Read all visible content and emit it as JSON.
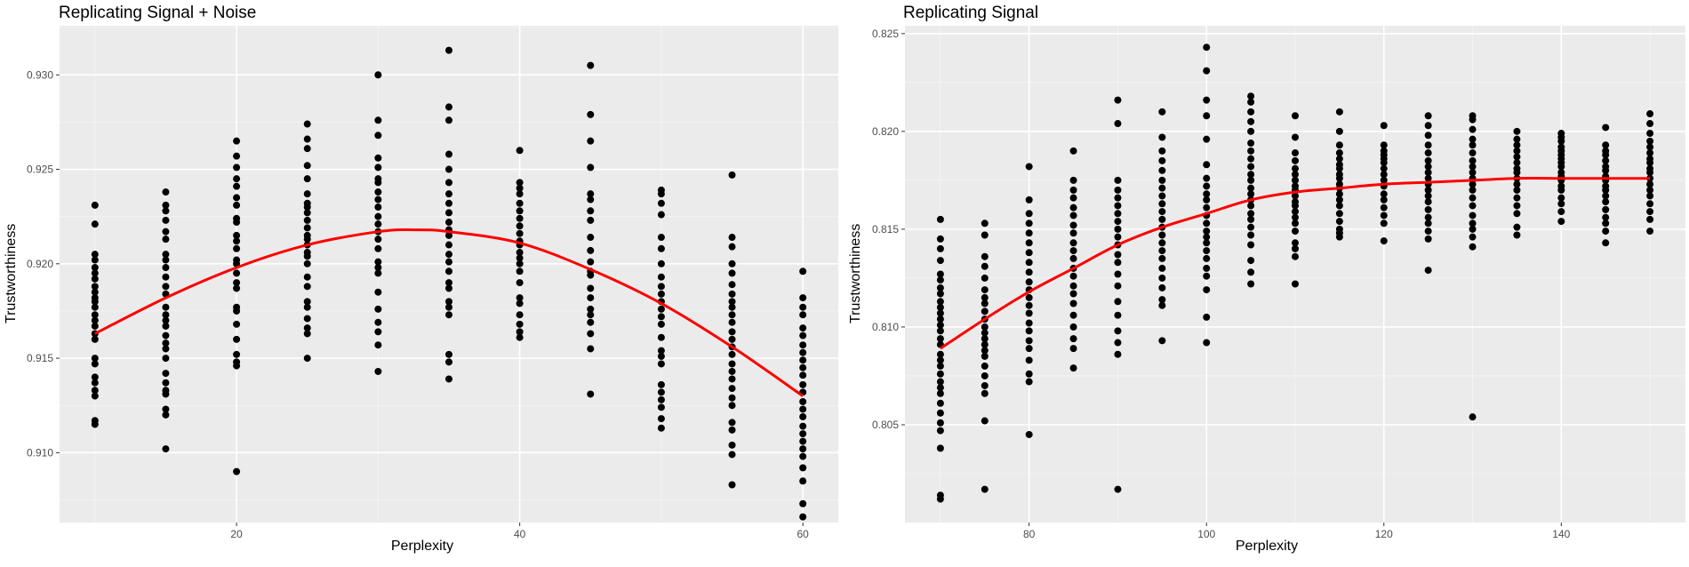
{
  "chart_data": [
    {
      "type": "scatter",
      "title": "Replicating Signal + Noise",
      "xlabel": "Perplexity",
      "ylabel": "Trustworthiness",
      "xlim": [
        7.5,
        62.5
      ],
      "ylim": [
        0.9063,
        0.9326
      ],
      "xticks": [
        20,
        40,
        60
      ],
      "yticks": [
        0.91,
        0.915,
        0.92,
        0.925,
        0.93
      ],
      "ytick_labels": [
        "0.910",
        "0.915",
        "0.920",
        "0.925",
        "0.930"
      ],
      "grid": true,
      "point_color": "#000000",
      "line_color": "#ff0000",
      "points": {
        "10": [
          0.9231,
          0.9221,
          0.9205,
          0.9202,
          0.9198,
          0.9195,
          0.9192,
          0.9188,
          0.9185,
          0.9182,
          0.918,
          0.9177,
          0.9173,
          0.917,
          0.9167,
          0.9163,
          0.916,
          0.915,
          0.9147,
          0.914,
          0.9137,
          0.9133,
          0.913,
          0.9117,
          0.9115
        ],
        "15": [
          0.9238,
          0.9231,
          0.9228,
          0.9223,
          0.9217,
          0.9213,
          0.9205,
          0.9202,
          0.9198,
          0.9193,
          0.9188,
          0.9184,
          0.9177,
          0.9173,
          0.917,
          0.9167,
          0.9162,
          0.9158,
          0.9155,
          0.915,
          0.9142,
          0.9137,
          0.9133,
          0.9131,
          0.9123,
          0.912,
          0.9102
        ],
        "20": [
          0.9265,
          0.9257,
          0.9251,
          0.9245,
          0.9241,
          0.9235,
          0.9231,
          0.9224,
          0.9222,
          0.9215,
          0.9212,
          0.9208,
          0.9202,
          0.92,
          0.9195,
          0.919,
          0.9187,
          0.9177,
          0.9175,
          0.9168,
          0.916,
          0.9152,
          0.9148,
          0.9146,
          0.909
        ],
        "25": [
          0.9274,
          0.9266,
          0.9261,
          0.9252,
          0.9245,
          0.9237,
          0.9232,
          0.923,
          0.9227,
          0.9223,
          0.9219,
          0.9215,
          0.9213,
          0.921,
          0.9206,
          0.9204,
          0.92,
          0.9193,
          0.9188,
          0.918,
          0.9177,
          0.9171,
          0.9166,
          0.9163,
          0.915
        ],
        "30": [
          0.93,
          0.9276,
          0.9268,
          0.9256,
          0.9251,
          0.9245,
          0.9243,
          0.9238,
          0.9234,
          0.923,
          0.9225,
          0.9221,
          0.9217,
          0.9213,
          0.9208,
          0.9201,
          0.9198,
          0.9195,
          0.9185,
          0.9176,
          0.9169,
          0.9164,
          0.9157,
          0.9143
        ],
        "35": [
          0.9313,
          0.9283,
          0.9276,
          0.9258,
          0.925,
          0.9243,
          0.9237,
          0.9232,
          0.9227,
          0.9222,
          0.9218,
          0.9215,
          0.921,
          0.9205,
          0.9201,
          0.9196,
          0.919,
          0.9187,
          0.918,
          0.9177,
          0.9173,
          0.9152,
          0.9148,
          0.9139
        ],
        "40": [
          0.926,
          0.9243,
          0.924,
          0.9237,
          0.9232,
          0.9228,
          0.9224,
          0.922,
          0.9216,
          0.9212,
          0.921,
          0.9206,
          0.9203,
          0.92,
          0.9196,
          0.919,
          0.9182,
          0.9179,
          0.9173,
          0.9168,
          0.9164,
          0.9161
        ],
        "45": [
          0.9305,
          0.9279,
          0.9265,
          0.9251,
          0.9237,
          0.9234,
          0.9228,
          0.9223,
          0.9214,
          0.9207,
          0.9201,
          0.9196,
          0.9194,
          0.9187,
          0.9182,
          0.9176,
          0.9173,
          0.9169,
          0.9163,
          0.9155,
          0.9131
        ],
        "50": [
          0.9239,
          0.9237,
          0.9232,
          0.9226,
          0.9214,
          0.9208,
          0.92,
          0.9193,
          0.9188,
          0.9184,
          0.918,
          0.9176,
          0.9172,
          0.9168,
          0.9161,
          0.9154,
          0.9151,
          0.9147,
          0.9136,
          0.9132,
          0.9128,
          0.9124,
          0.9118,
          0.9113
        ],
        "55": [
          0.9247,
          0.9214,
          0.9209,
          0.92,
          0.9195,
          0.9189,
          0.9184,
          0.918,
          0.9177,
          0.9173,
          0.9169,
          0.9164,
          0.916,
          0.9156,
          0.9152,
          0.9147,
          0.9143,
          0.9139,
          0.9134,
          0.9129,
          0.9125,
          0.9116,
          0.9112,
          0.9104,
          0.9099,
          0.9083
        ],
        "60": [
          0.9196,
          0.9182,
          0.9177,
          0.9173,
          0.9166,
          0.9162,
          0.9157,
          0.9153,
          0.9149,
          0.9145,
          0.9141,
          0.9136,
          0.9132,
          0.9127,
          0.9123,
          0.9119,
          0.9114,
          0.911,
          0.9106,
          0.9102,
          0.9098,
          0.9092,
          0.9085,
          0.9073,
          0.9066
        ]
      },
      "trend": {
        "x": [
          10,
          15,
          20,
          25,
          30,
          32.5,
          35,
          40,
          45,
          50,
          55,
          60
        ],
        "y": [
          0.9163,
          0.9182,
          0.9198,
          0.921,
          0.9217,
          0.9218,
          0.9217,
          0.9211,
          0.9197,
          0.9179,
          0.9156,
          0.913
        ]
      }
    },
    {
      "type": "scatter",
      "title": "Replicating Signal",
      "xlabel": "Perplexity",
      "ylabel": "Trustworthiness",
      "xlim": [
        66,
        154
      ],
      "ylim": [
        0.8,
        0.8254
      ],
      "xticks": [
        80,
        100,
        120,
        140
      ],
      "yticks": [
        0.805,
        0.81,
        0.815,
        0.82,
        0.825
      ],
      "ytick_labels": [
        "0.805",
        "0.810",
        "0.815",
        "0.820",
        "0.825"
      ],
      "grid": true,
      "point_color": "#000000",
      "line_color": "#ff0000",
      "points": {
        "70": [
          0.8155,
          0.8145,
          0.814,
          0.8134,
          0.8127,
          0.8124,
          0.812,
          0.8117,
          0.8113,
          0.811,
          0.8107,
          0.8104,
          0.8101,
          0.8098,
          0.8094,
          0.8091,
          0.8086,
          0.8083,
          0.808,
          0.8076,
          0.8072,
          0.8069,
          0.8066,
          0.8061,
          0.8056,
          0.8051,
          0.8047,
          0.8038,
          0.8014,
          0.8012
        ],
        "75": [
          0.8153,
          0.8147,
          0.8136,
          0.8131,
          0.8125,
          0.8119,
          0.8115,
          0.8112,
          0.8108,
          0.8104,
          0.81,
          0.8097,
          0.8094,
          0.8091,
          0.8088,
          0.8085,
          0.808,
          0.8075,
          0.807,
          0.8066,
          0.8052,
          0.8017
        ],
        "80": [
          0.8182,
          0.8165,
          0.8158,
          0.8153,
          0.8148,
          0.8143,
          0.8138,
          0.8133,
          0.8128,
          0.8123,
          0.8119,
          0.8115,
          0.8111,
          0.8107,
          0.8102,
          0.8098,
          0.8093,
          0.8089,
          0.8083,
          0.8076,
          0.8072,
          0.8045
        ],
        "85": [
          0.819,
          0.8175,
          0.817,
          0.8166,
          0.8161,
          0.8157,
          0.8152,
          0.8148,
          0.8143,
          0.8139,
          0.8135,
          0.813,
          0.8126,
          0.8121,
          0.8117,
          0.8112,
          0.8106,
          0.81,
          0.8094,
          0.8089,
          0.8079
        ],
        "90": [
          0.8216,
          0.8204,
          0.8175,
          0.817,
          0.8166,
          0.8162,
          0.8158,
          0.8154,
          0.815,
          0.8146,
          0.8142,
          0.8137,
          0.8133,
          0.8127,
          0.8121,
          0.8113,
          0.8106,
          0.8098,
          0.8092,
          0.8086,
          0.8017
        ],
        "95": [
          0.821,
          0.8197,
          0.819,
          0.8185,
          0.818,
          0.8175,
          0.8171,
          0.8167,
          0.8163,
          0.8159,
          0.8155,
          0.8151,
          0.8147,
          0.8143,
          0.8139,
          0.8135,
          0.813,
          0.8125,
          0.812,
          0.8114,
          0.8111,
          0.8093
        ],
        "100": [
          0.8243,
          0.8231,
          0.8216,
          0.8208,
          0.8196,
          0.8183,
          0.8176,
          0.8172,
          0.8168,
          0.8165,
          0.8161,
          0.8157,
          0.8153,
          0.8149,
          0.8146,
          0.8143,
          0.8139,
          0.8135,
          0.813,
          0.8126,
          0.8119,
          0.8105,
          0.8092
        ],
        "105": [
          0.8218,
          0.8215,
          0.821,
          0.8205,
          0.82,
          0.8194,
          0.819,
          0.8186,
          0.8182,
          0.8178,
          0.8175,
          0.8171,
          0.8168,
          0.8165,
          0.8162,
          0.8158,
          0.8155,
          0.8151,
          0.8147,
          0.8142,
          0.8134,
          0.8128,
          0.8122
        ],
        "110": [
          0.8208,
          0.8197,
          0.8189,
          0.8185,
          0.8181,
          0.8178,
          0.8175,
          0.8172,
          0.817,
          0.8167,
          0.8164,
          0.8162,
          0.8159,
          0.8156,
          0.8153,
          0.8149,
          0.8143,
          0.814,
          0.8136,
          0.8122
        ],
        "115": [
          0.821,
          0.82,
          0.8193,
          0.8189,
          0.8186,
          0.8183,
          0.8181,
          0.8178,
          0.8176,
          0.8173,
          0.8171,
          0.8168,
          0.8165,
          0.8162,
          0.8158,
          0.8154,
          0.815,
          0.8148,
          0.8146
        ],
        "120": [
          0.8203,
          0.8193,
          0.819,
          0.8188,
          0.8186,
          0.8184,
          0.8181,
          0.8178,
          0.8175,
          0.8172,
          0.8168,
          0.8165,
          0.8161,
          0.8157,
          0.8153,
          0.8144
        ],
        "125": [
          0.8208,
          0.8203,
          0.8198,
          0.8193,
          0.8189,
          0.8185,
          0.8182,
          0.8179,
          0.8176,
          0.8173,
          0.817,
          0.8167,
          0.8164,
          0.816,
          0.8156,
          0.8153,
          0.8149,
          0.8145,
          0.8129
        ],
        "130": [
          0.8208,
          0.8206,
          0.8201,
          0.8196,
          0.8193,
          0.8189,
          0.8185,
          0.8182,
          0.8179,
          0.8176,
          0.8173,
          0.817,
          0.8166,
          0.8162,
          0.8157,
          0.8153,
          0.815,
          0.8146,
          0.8141,
          0.8054
        ],
        "135": [
          0.82,
          0.8196,
          0.8193,
          0.819,
          0.8187,
          0.8184,
          0.8181,
          0.8179,
          0.8176,
          0.8173,
          0.817,
          0.8166,
          0.8162,
          0.8158,
          0.8151,
          0.8147
        ],
        "140": [
          0.8199,
          0.8197,
          0.8195,
          0.8192,
          0.819,
          0.8188,
          0.8186,
          0.8184,
          0.8182,
          0.8179,
          0.8177,
          0.8175,
          0.8172,
          0.817,
          0.8166,
          0.8163,
          0.8159,
          0.8154
        ],
        "145": [
          0.8202,
          0.8193,
          0.819,
          0.8188,
          0.8185,
          0.8182,
          0.818,
          0.8177,
          0.8175,
          0.8172,
          0.817,
          0.8167,
          0.8164,
          0.816,
          0.8156,
          0.8153,
          0.8149,
          0.8143
        ],
        "150": [
          0.8209,
          0.8204,
          0.8199,
          0.8195,
          0.8192,
          0.8189,
          0.8186,
          0.8184,
          0.8181,
          0.8179,
          0.8176,
          0.8173,
          0.817,
          0.8167,
          0.8163,
          0.8159,
          0.8155,
          0.8149
        ]
      },
      "trend": {
        "x": [
          70,
          75,
          80,
          85,
          90,
          95,
          100,
          105,
          110,
          115,
          120,
          125,
          130,
          135,
          140,
          145,
          150
        ],
        "y": [
          0.8089,
          0.8104,
          0.8118,
          0.813,
          0.8142,
          0.8151,
          0.8158,
          0.8165,
          0.8169,
          0.8171,
          0.8173,
          0.8174,
          0.8175,
          0.8176,
          0.8176,
          0.8176,
          0.8176
        ]
      }
    }
  ]
}
